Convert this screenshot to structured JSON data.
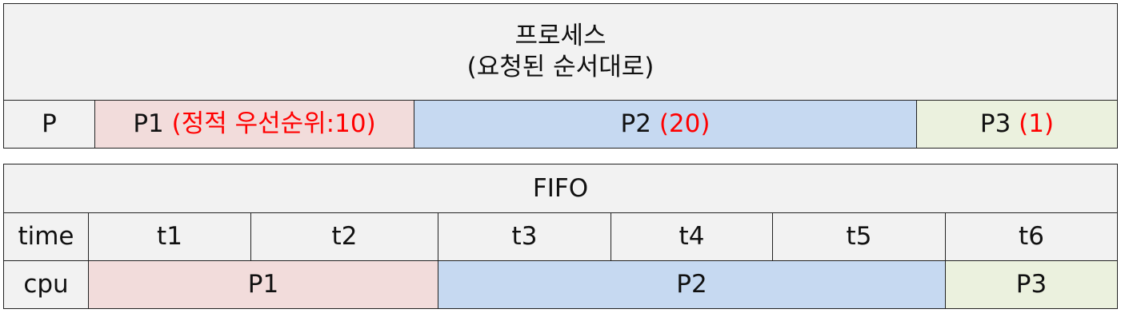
{
  "process_table": {
    "header_line1": "프로세스",
    "header_line2": "(요청된 순서대로)",
    "row_label": "P",
    "processes": [
      {
        "name": "P1",
        "priority": "(정적 우선순위:10)",
        "color": "#f2dcdb"
      },
      {
        "name": "P2",
        "priority": "(20)",
        "color": "#c6d9f1"
      },
      {
        "name": "P3",
        "priority": "(1)",
        "color": "#ebf1de"
      }
    ],
    "priority_color": "#ff0000"
  },
  "fifo_table": {
    "title": "FIFO",
    "time_label": "time",
    "cpu_label": "cpu",
    "times": [
      "t1",
      "t2",
      "t3",
      "t4",
      "t5",
      "t6"
    ],
    "cpu": [
      {
        "name": "P1",
        "span": "t1-t2",
        "color": "#f2dcdb"
      },
      {
        "name": "P2",
        "span": "t3-t5",
        "color": "#c6d9f1"
      },
      {
        "name": "P3",
        "span": "t6",
        "color": "#ebf1de"
      }
    ]
  }
}
